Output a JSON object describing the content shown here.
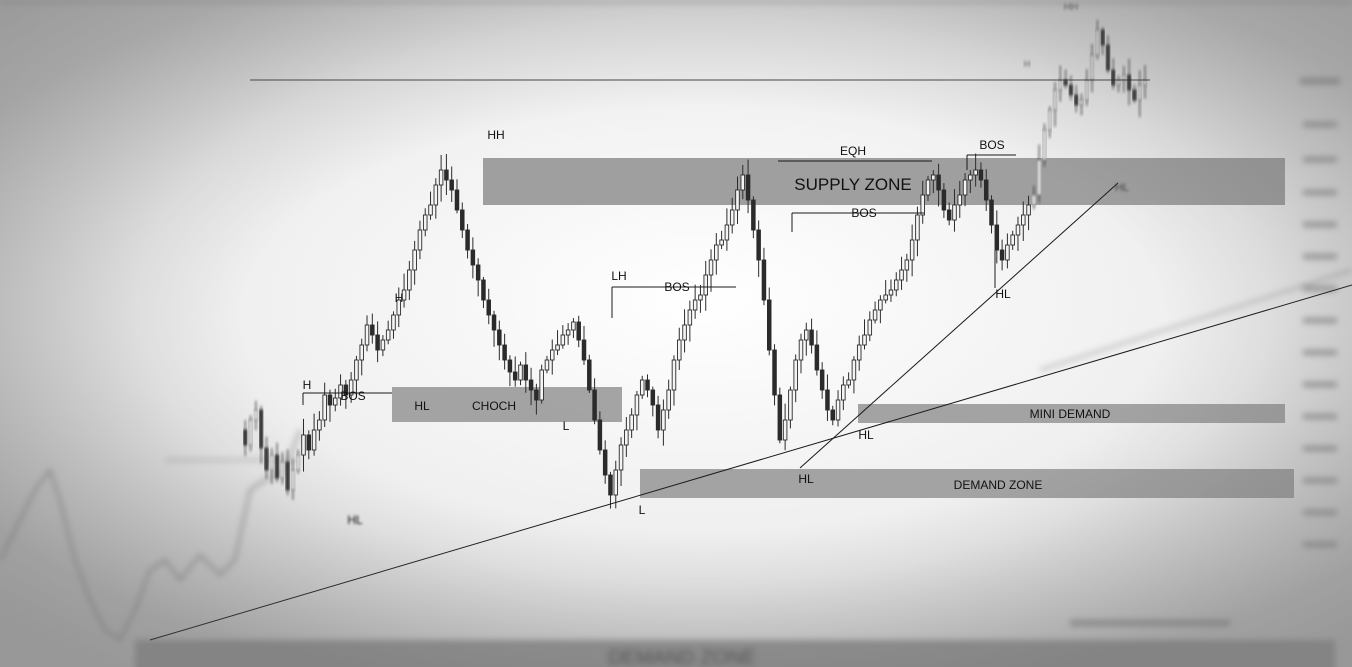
{
  "chart_data": {
    "type": "candlestick",
    "title": "",
    "colors": {
      "background": "#ebebeb",
      "zone": "#9a9a9a",
      "candle": "#2b2b2b",
      "line": "#1a1a1a",
      "text": "#111111"
    },
    "zones": [
      {
        "name": "supply",
        "label": "SUPPLY ZONE"
      },
      {
        "name": "choch",
        "label": "CHOCH"
      },
      {
        "name": "mini-demand",
        "label": "MINI DEMAND"
      },
      {
        "name": "demand",
        "label": "DEMAND ZONE"
      },
      {
        "name": "demand-lower",
        "label": "DEMAND ZONE"
      }
    ],
    "structure_labels": [
      "H",
      "BOS",
      "HL",
      "H",
      "HL",
      "HH",
      "L",
      "LH",
      "BOS",
      "L",
      "BOS",
      "EQH",
      "HL",
      "HL",
      "BOS",
      "HL",
      "HH",
      "HL",
      "H"
    ],
    "price_path": [
      430,
      445,
      420,
      410,
      448,
      470,
      455,
      478,
      462,
      490,
      470,
      455,
      435,
      450,
      430,
      420,
      395,
      405,
      398,
      385,
      395,
      380,
      360,
      345,
      325,
      335,
      350,
      340,
      330,
      315,
      300,
      290,
      270,
      250,
      230,
      215,
      205,
      185,
      170,
      180,
      190,
      210,
      230,
      250,
      265,
      280,
      300,
      315,
      330,
      345,
      360,
      372,
      380,
      365,
      380,
      390,
      400,
      370,
      360,
      350,
      345,
      335,
      330,
      322,
      340,
      360,
      390,
      420,
      450,
      475,
      495,
      470,
      445,
      430,
      415,
      395,
      380,
      390,
      405,
      430,
      410,
      390,
      360,
      340,
      325,
      310,
      300,
      295,
      275,
      260,
      245,
      240,
      225,
      210,
      190,
      175,
      200,
      230,
      260,
      300,
      350,
      395,
      440,
      420,
      390,
      360,
      340,
      330,
      345,
      370,
      390,
      410,
      420,
      400,
      385,
      380,
      360,
      345,
      335,
      320,
      310,
      300,
      295,
      290,
      280,
      270,
      260,
      240,
      215,
      195,
      180,
      175,
      190,
      210,
      220,
      205,
      195,
      180,
      175,
      170,
      180,
      200,
      225,
      250,
      260,
      245,
      235,
      225,
      215,
      205,
      195,
      160,
      130,
      110,
      90,
      80,
      85,
      95,
      105,
      100,
      80,
      55,
      30,
      45,
      70,
      85,
      80,
      75,
      90,
      100,
      85,
      80
    ]
  }
}
